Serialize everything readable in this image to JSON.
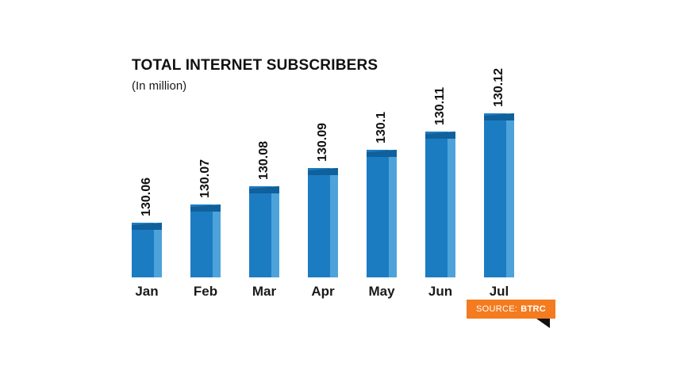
{
  "header": {
    "title": "TOTAL INTERNET SUBSCRIBERS",
    "subtitle": "(In million)"
  },
  "source": {
    "prefix": "SOURCE:",
    "name": "BTRC"
  },
  "colors": {
    "bar_main": "#1c7cc2",
    "bar_right_stripe": "#4da3d9",
    "bar_cap": "#10609c",
    "source_bg": "#f47b20",
    "fold": "#111111",
    "text": "#111111",
    "background": "#ffffff"
  },
  "chart_data": {
    "type": "bar",
    "title": "TOTAL INTERNET SUBSCRIBERS",
    "ylabel": "In million",
    "categories": [
      "Jan",
      "Feb",
      "Mar",
      "Apr",
      "May",
      "Jun",
      "Jul"
    ],
    "values": [
      130.06,
      130.07,
      130.08,
      130.09,
      130.1,
      130.11,
      130.12
    ],
    "value_labels": [
      "130.06",
      "130.07",
      "130.08",
      "130.09",
      "130.1",
      "130.11",
      "130.12"
    ],
    "baseline_value": 130.03,
    "grid": false,
    "legend": false,
    "value_labels_rotated": true
  }
}
